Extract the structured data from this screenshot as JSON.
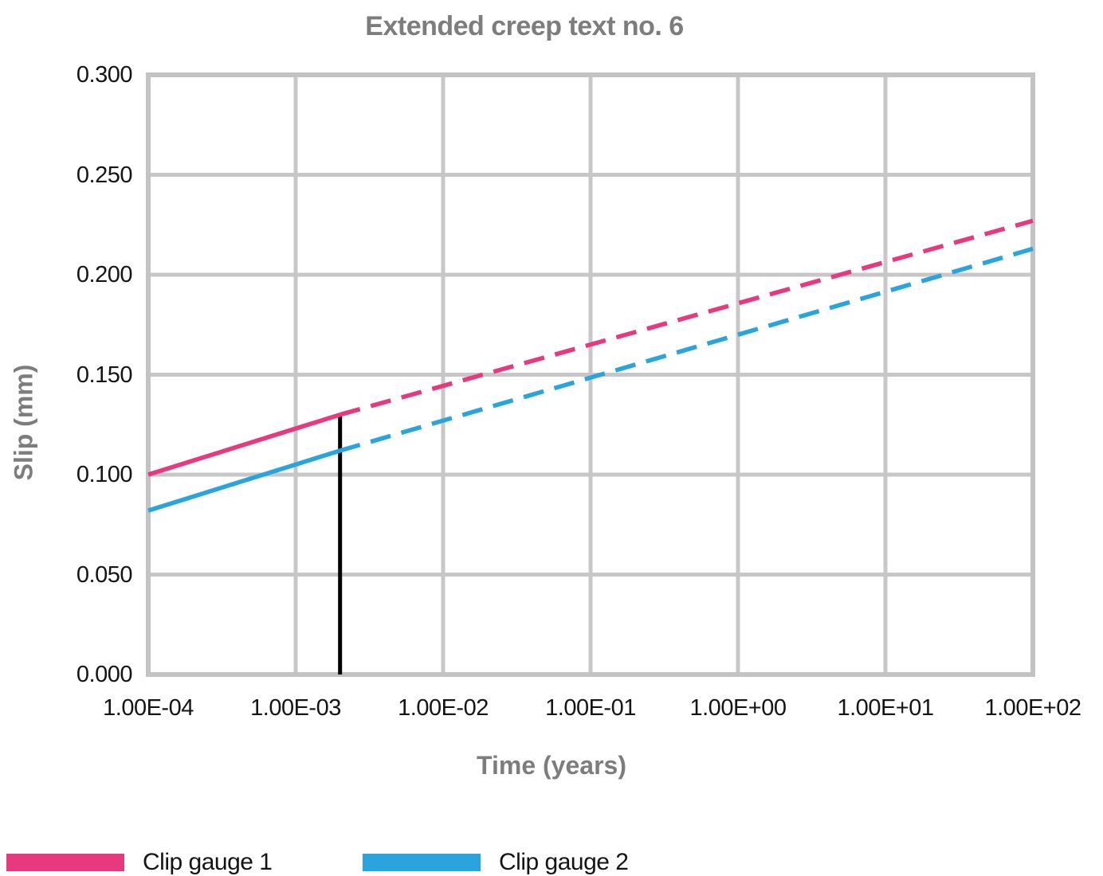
{
  "title": "Extended creep text no. 6",
  "chart_data": {
    "type": "line",
    "title": "Extended creep text no. 6",
    "xlabel": "Time (years)",
    "ylabel": "Slip (mm)",
    "x_scale": "log",
    "y_scale": "linear",
    "xlim": [
      0.0001,
      100
    ],
    "ylim": [
      0.0,
      0.3
    ],
    "grid": true,
    "grid_color": "#c7c7c7",
    "border_color": "#c3c3c3",
    "tick_label_color": "#141414",
    "axis_title_color": "#7d7d7d",
    "x_tick_values": [
      0.0001,
      0.001,
      0.01,
      0.1,
      1,
      10,
      100
    ],
    "x_tick_labels": [
      "1.00E-04",
      "1.00E-03",
      "1.00E-02",
      "1.00E-01",
      "1.00E+00",
      "1.00E+01",
      "1.00E+02"
    ],
    "y_tick_values": [
      0.0,
      0.05,
      0.1,
      0.15,
      0.2,
      0.25,
      0.3
    ],
    "y_tick_labels": [
      "0.000",
      "0.050",
      "0.100",
      "0.150",
      "0.200",
      "0.250",
      "0.300"
    ],
    "legend_position": "bottom-left",
    "series": [
      {
        "name": "Clip gauge 1",
        "color": "#e8397f",
        "segments": [
          {
            "style": "solid",
            "points": [
              [
                0.0001,
                0.1
              ],
              [
                0.002,
                0.13
              ]
            ]
          },
          {
            "style": "dashed",
            "points": [
              [
                0.002,
                0.13
              ],
              [
                100,
                0.227
              ]
            ]
          }
        ]
      },
      {
        "name": "Clip gauge 2",
        "color": "#29a4dd",
        "segments": [
          {
            "style": "solid",
            "points": [
              [
                0.0001,
                0.082
              ],
              [
                0.002,
                0.112
              ]
            ]
          },
          {
            "style": "dashed",
            "points": [
              [
                0.002,
                0.112
              ],
              [
                100,
                0.213
              ]
            ]
          }
        ]
      }
    ],
    "marker_line": {
      "x": 0.002,
      "y_from": 0.0,
      "y_to": 0.13,
      "color": "#000000"
    }
  }
}
